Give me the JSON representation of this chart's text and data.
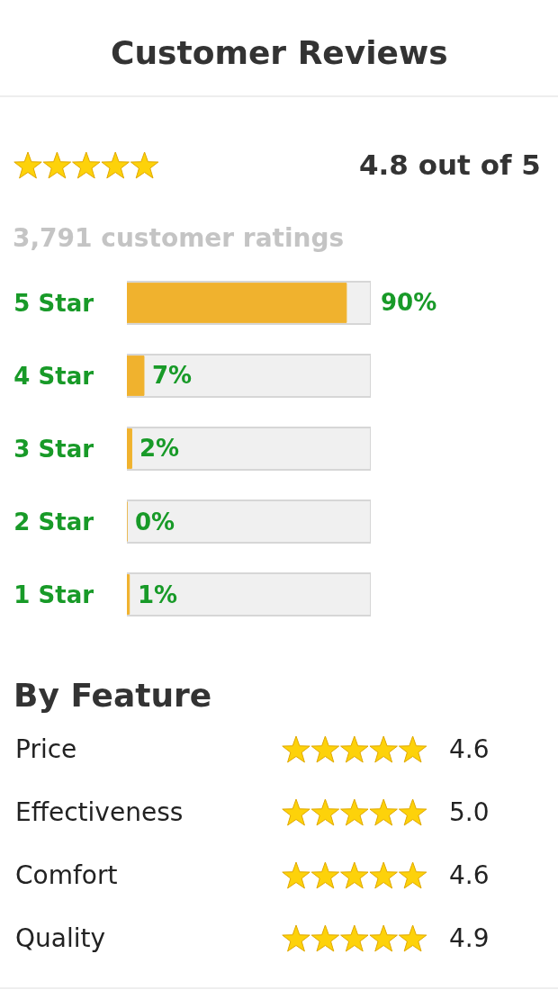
{
  "chart_data": [
    {
      "type": "other",
      "title": "Customer Reviews",
      "annotations": [
        "4.8 out of 5",
        "3,791 customer ratings"
      ]
    },
    {
      "type": "bar",
      "orientation": "horizontal",
      "categories": [
        "5 Star",
        "4 Star",
        "3 Star",
        "2 Star",
        "1 Star"
      ],
      "values": [
        90,
        7,
        2,
        0,
        1
      ],
      "value_labels": [
        "90%",
        "7%",
        "2%",
        "0%",
        "1%"
      ],
      "color": "#f0b22e",
      "xlim": [
        0,
        100
      ],
      "tick_labels": "y"
    },
    {
      "type": "other",
      "title": "By Feature",
      "categories": [
        "Price",
        "Effectiveness",
        "Comfort",
        "Quality"
      ],
      "values": [
        4.6,
        5.0,
        4.6,
        4.9
      ],
      "value_labels": [
        "4.6",
        "5.0",
        "4.6",
        "4.9"
      ]
    }
  ]
}
